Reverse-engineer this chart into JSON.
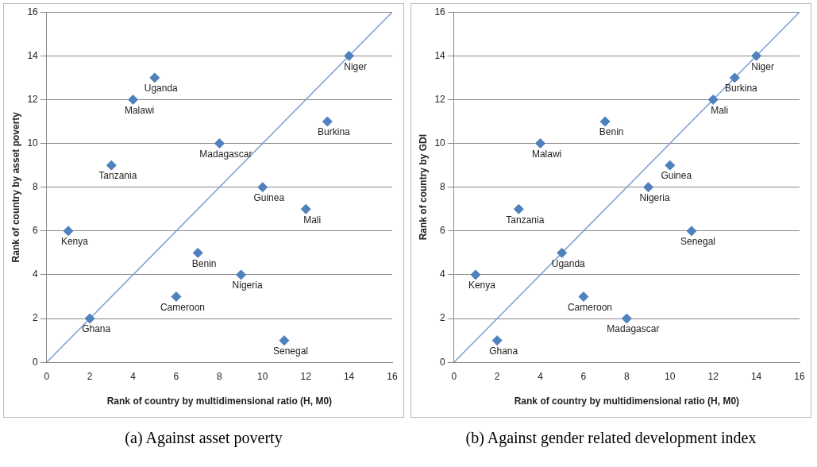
{
  "chart_data": [
    {
      "type": "scatter",
      "xlabel": "Rank of country by multidimensional ratio (H, M0)",
      "ylabel": "Rank of country by asset poverty",
      "xlim": [
        0,
        16
      ],
      "ylim": [
        0,
        16
      ],
      "xticks": [
        0,
        2,
        4,
        6,
        8,
        10,
        12,
        14,
        16
      ],
      "yticks": [
        0,
        2,
        4,
        6,
        8,
        10,
        12,
        14,
        16
      ],
      "grid": "y",
      "legend": false,
      "marker": "diamond",
      "series": [
        {
          "color": "#4f81bd",
          "x": [
            1,
            2,
            3,
            4,
            5,
            6,
            7,
            8,
            9,
            10,
            11,
            12,
            13,
            14
          ],
          "values": [
            6,
            2,
            9,
            12,
            13,
            3,
            5,
            10,
            4,
            8,
            1,
            7,
            11,
            14
          ]
        },
        {
          "type": "line",
          "color": "#7a9fd0",
          "x": [
            0,
            16
          ],
          "values": [
            0,
            16
          ],
          "marker": "none",
          "line_style": "solid"
        }
      ],
      "annotations": [
        {
          "text": "Kenya",
          "x": 1,
          "y": 6
        },
        {
          "text": "Ghana",
          "x": 2,
          "y": 2
        },
        {
          "text": "Tanzania",
          "x": 3,
          "y": 9
        },
        {
          "text": "Malawi",
          "x": 4,
          "y": 12
        },
        {
          "text": "Uganda",
          "x": 5,
          "y": 13
        },
        {
          "text": "Cameroon",
          "x": 6,
          "y": 3
        },
        {
          "text": "Benin",
          "x": 7,
          "y": 5
        },
        {
          "text": "Madagascar",
          "x": 8,
          "y": 10
        },
        {
          "text": "Nigeria",
          "x": 9,
          "y": 4
        },
        {
          "text": "Guinea",
          "x": 10,
          "y": 8
        },
        {
          "text": "Senegal",
          "x": 11,
          "y": 1
        },
        {
          "text": "Mali",
          "x": 12,
          "y": 7
        },
        {
          "text": "Burkina",
          "x": 13,
          "y": 11
        },
        {
          "text": "Niger",
          "x": 14,
          "y": 14
        },
        "(a)  Against asset poverty"
      ]
    },
    {
      "type": "scatter",
      "xlabel": "Rank of country by multidimensional ratio (H, M0)",
      "ylabel": "Rank of country by GDI",
      "xlim": [
        0,
        16
      ],
      "ylim": [
        0,
        16
      ],
      "xticks": [
        0,
        2,
        4,
        6,
        8,
        10,
        12,
        14,
        16
      ],
      "yticks": [
        0,
        2,
        4,
        6,
        8,
        10,
        12,
        14,
        16
      ],
      "grid": "y",
      "legend": false,
      "marker": "diamond",
      "series": [
        {
          "color": "#4f81bd",
          "x": [
            1,
            2,
            3,
            4,
            5,
            6,
            7,
            8,
            9,
            10,
            11,
            12,
            13,
            14
          ],
          "values": [
            4,
            1,
            7,
            10,
            5,
            3,
            11,
            2,
            8,
            9,
            6,
            12,
            13,
            14
          ]
        },
        {
          "type": "line",
          "color": "#7a9fd0",
          "x": [
            0,
            16
          ],
          "values": [
            0,
            16
          ],
          "marker": "none",
          "line_style": "solid"
        }
      ],
      "annotations": [
        {
          "text": "Kenya",
          "x": 1,
          "y": 4
        },
        {
          "text": "Ghana",
          "x": 2,
          "y": 1
        },
        {
          "text": "Tanzania",
          "x": 3,
          "y": 7
        },
        {
          "text": "Malawi",
          "x": 4,
          "y": 10
        },
        {
          "text": "Uganda",
          "x": 5,
          "y": 5
        },
        {
          "text": "Cameroon",
          "x": 6,
          "y": 3
        },
        {
          "text": "Benin",
          "x": 7,
          "y": 11
        },
        {
          "text": "Madagascar",
          "x": 8,
          "y": 2
        },
        {
          "text": "Nigeria",
          "x": 9,
          "y": 8
        },
        {
          "text": "Guinea",
          "x": 10,
          "y": 9
        },
        {
          "text": "Senegal",
          "x": 11,
          "y": 6
        },
        {
          "text": "Mali",
          "x": 12,
          "y": 12
        },
        {
          "text": "Burkina",
          "x": 13,
          "y": 13
        },
        {
          "text": "Niger",
          "x": 14,
          "y": 14
        },
        "(b)  Against gender related development index"
      ]
    }
  ]
}
